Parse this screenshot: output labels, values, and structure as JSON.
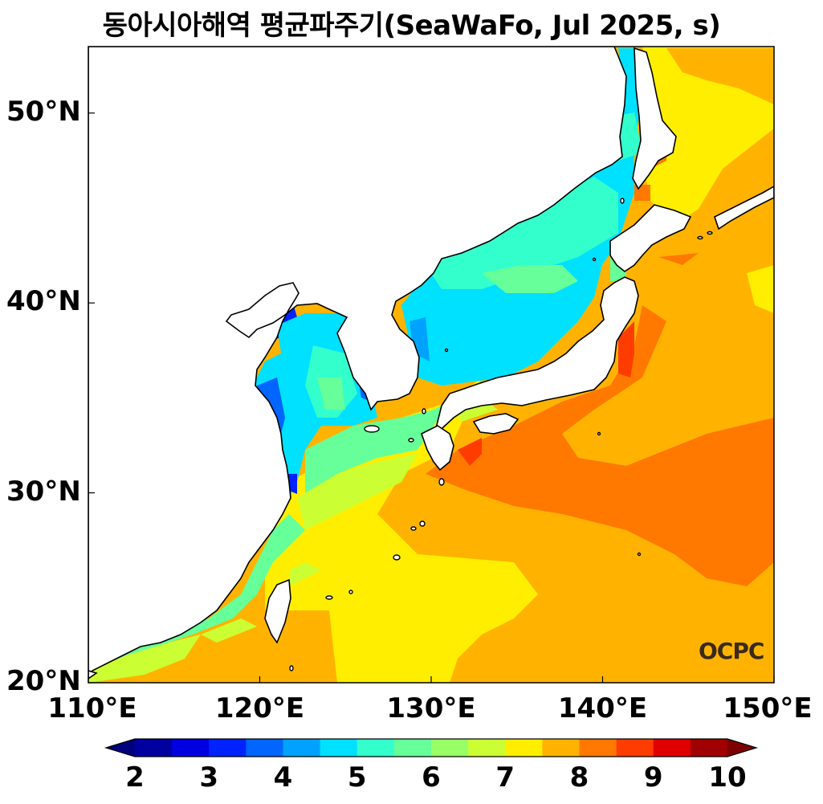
{
  "title": "동아시아해역 평균파주기(SeaWaFo, Jul 2025, s)",
  "watermark": "OCPC",
  "map": {
    "lon_range": [
      110,
      150
    ],
    "lat_range": [
      20,
      53.5
    ],
    "x_ticks": [
      {
        "value": 110,
        "label": "110°E"
      },
      {
        "value": 120,
        "label": "120°E"
      },
      {
        "value": 130,
        "label": "130°E"
      },
      {
        "value": 140,
        "label": "140°E"
      },
      {
        "value": 150,
        "label": "150°E"
      }
    ],
    "y_ticks": [
      {
        "value": 20,
        "label": "20°N"
      },
      {
        "value": 30,
        "label": "30°N"
      },
      {
        "value": 40,
        "label": "40°N"
      },
      {
        "value": 50,
        "label": "50°N"
      }
    ]
  },
  "colorbar": {
    "levels": [
      2,
      2.5,
      3,
      3.5,
      4,
      4.5,
      5,
      5.5,
      6,
      6.5,
      7,
      7.5,
      8,
      8.5,
      9,
      9.5,
      10
    ],
    "tick_labels": [
      "2",
      "3",
      "4",
      "5",
      "6",
      "7",
      "8",
      "9",
      "10"
    ],
    "under_color": "#00007f",
    "over_color": "#7f0000",
    "colors": [
      "#0000a0",
      "#0000e0",
      "#0022ff",
      "#0066ff",
      "#00a2ff",
      "#00e0ff",
      "#33ffcc",
      "#66ff99",
      "#99ff66",
      "#ccff33",
      "#ffee00",
      "#ffb300",
      "#ff7800",
      "#ff3c00",
      "#e00000",
      "#a00000"
    ]
  }
}
